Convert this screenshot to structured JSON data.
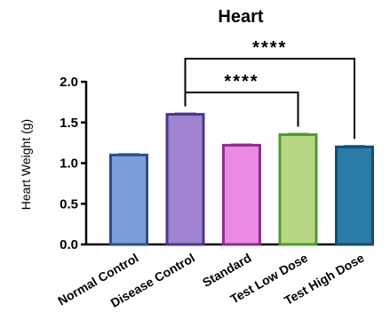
{
  "chart_data": {
    "type": "bar",
    "title": "Heart",
    "xlabel": "",
    "ylabel": "Heart Weight (g)",
    "ylim": [
      0,
      2.0
    ],
    "yticks": [
      "0.0",
      "0.5",
      "1.0",
      "1.5",
      "2.0"
    ],
    "categories": [
      "Normal Control",
      "Disease Control",
      "Standard",
      "Test Low Dose",
      "Test High Dose"
    ],
    "values": [
      1.1,
      1.6,
      1.22,
      1.35,
      1.2
    ],
    "errors": [
      0.01,
      0.01,
      0.01,
      0.01,
      0.01
    ],
    "colors": [
      "#7a9fd8",
      "#a084d0",
      "#e98ae6",
      "#b6d884",
      "#2b7ca8"
    ],
    "edge_colors": [
      "#2e4d8a",
      "#4b3789",
      "#8a2f8a",
      "#4f9a2f",
      "#174d6b"
    ],
    "significance": [
      {
        "from": 1,
        "to": 3,
        "label": "****"
      },
      {
        "from": 1,
        "to": 4,
        "label": "****"
      }
    ]
  }
}
